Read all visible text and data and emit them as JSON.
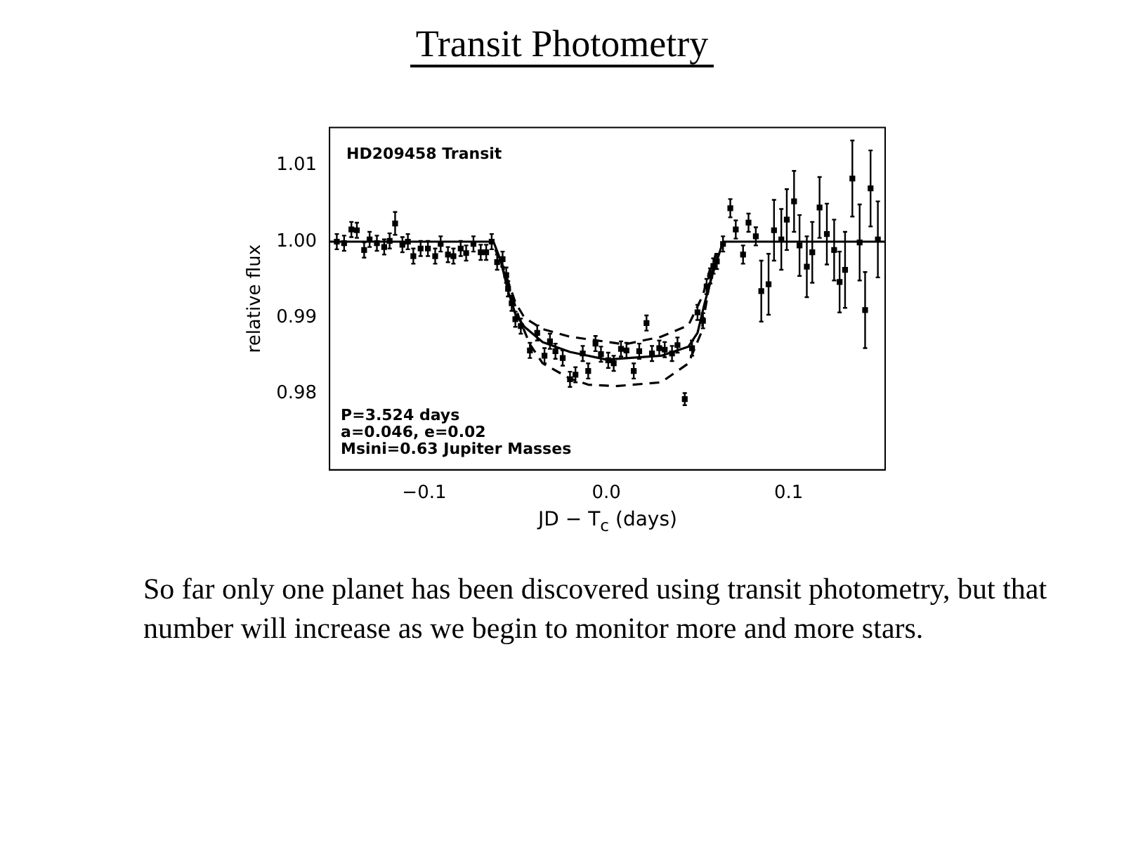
{
  "chart_data": {
    "type": "scatter",
    "title": "Transit Photometry",
    "xlabel": "JD − T$_{c}$ (days)",
    "ylabel": "relative flux",
    "xlim": [
      -0.152,
      0.153
    ],
    "ylim": [
      0.97,
      1.015
    ],
    "xticks": [
      {
        "value": -0.1,
        "label": "−0.1"
      },
      {
        "value": 0,
        "label": "0.0"
      },
      0.1
    ],
    "yticks": [
      0.98,
      0.99,
      {
        "value": 1,
        "label": "1.00"
      },
      1.01
    ],
    "legend": false,
    "annotations": [
      "HD209458 Transit",
      "P=3.524 days",
      "a=0.046, e=0.02",
      "Msini=0.63 Jupiter Masses",
      "So far only one planet has been discovered using transit photometry, but that number will increase as we begin to monitor more and more stars."
    ],
    "series": [
      {
        "type": "scatter",
        "color": "#000000",
        "marker": "square",
        "x": [
          -0.148,
          -0.144,
          -0.14,
          -0.137,
          -0.133,
          -0.13,
          -0.126,
          -0.122,
          -0.119,
          -0.116,
          -0.112,
          -0.109,
          -0.106,
          -0.102,
          -0.098,
          -0.094,
          -0.091,
          -0.087,
          -0.084,
          -0.08,
          -0.077,
          -0.073,
          -0.069,
          -0.066,
          -0.063,
          -0.06,
          -0.057,
          -0.055,
          -0.054,
          -0.052,
          -0.05,
          -0.047,
          -0.042,
          -0.038,
          -0.034,
          -0.031,
          -0.028,
          -0.024,
          -0.02,
          -0.017,
          -0.013,
          -0.01,
          -0.006,
          -0.003,
          0.001,
          0.004,
          0.008,
          0.011,
          0.015,
          0.018,
          0.022,
          0.025,
          0.029,
          0.032,
          0.036,
          0.039,
          0.043,
          0.047,
          0.05,
          0.053,
          0.055,
          0.057,
          0.0587,
          0.0606,
          0.064,
          0.068,
          0.071,
          0.075,
          0.078,
          0.082,
          0.085,
          0.089,
          0.092,
          0.096,
          0.099,
          0.103,
          0.106,
          0.11,
          0.113,
          0.117,
          0.121,
          0.125,
          0.128,
          0.131,
          0.135,
          0.139,
          0.142,
          0.145,
          0.149
        ],
        "values": [
          1.0,
          0.9998,
          1.0016,
          1.0015,
          0.9989,
          1.0003,
          0.9998,
          0.9993,
          1.0001,
          1.0024,
          0.9996,
          1.0,
          0.9981,
          0.9991,
          0.9991,
          0.9981,
          0.9997,
          0.9983,
          0.9981,
          0.9991,
          0.9985,
          0.9997,
          0.9986,
          0.9986,
          1.0,
          0.9973,
          0.9977,
          0.9956,
          0.9938,
          0.9919,
          0.9898,
          0.9889,
          0.9857,
          0.988,
          0.985,
          0.9869,
          0.9856,
          0.9847,
          0.9819,
          0.9825,
          0.9853,
          0.983,
          0.9866,
          0.9852,
          0.9844,
          0.984,
          0.9859,
          0.9857,
          0.983,
          0.9856,
          0.9893,
          0.9853,
          0.986,
          0.9858,
          0.9853,
          0.9864,
          0.9793,
          0.986,
          0.9907,
          0.9896,
          0.9941,
          0.9955,
          0.9968,
          0.9974,
          0.9997,
          1.0044,
          1.0016,
          0.9983,
          1.0025,
          1.0007,
          0.9935,
          0.9944,
          1.0015,
          1.0003,
          1.0029,
          1.0053,
          0.9995,
          0.9967,
          0.9986,
          1.0045,
          1.001,
          0.9989,
          0.9947,
          0.9963,
          1.0083,
          0.9999,
          0.991,
          1.007,
          1.0003
        ],
        "errors": [
          0.001,
          0.001,
          0.001,
          0.001,
          0.001,
          0.001,
          0.001,
          0.001,
          0.001,
          0.0015,
          0.001,
          0.001,
          0.001,
          0.001,
          0.001,
          0.001,
          0.001,
          0.001,
          0.001,
          0.001,
          0.001,
          0.001,
          0.001,
          0.001,
          0.001,
          0.001,
          0.001,
          0.001,
          0.001,
          0.001,
          0.001,
          0.001,
          0.001,
          0.001,
          0.001,
          0.001,
          0.001,
          0.001,
          0.001,
          0.001,
          0.001,
          0.001,
          0.001,
          0.001,
          0.001,
          0.001,
          0.001,
          0.001,
          0.001,
          0.001,
          0.001,
          0.001,
          0.001,
          0.001,
          0.001,
          0.001,
          0.0008,
          0.001,
          0.001,
          0.001,
          0.001,
          0.001,
          0.001,
          0.001,
          0.001,
          0.0012,
          0.0012,
          0.0012,
          0.0012,
          0.0012,
          0.004,
          0.004,
          0.004,
          0.004,
          0.004,
          0.004,
          0.004,
          0.004,
          0.004,
          0.004,
          0.004,
          0.004,
          0.004,
          0.005,
          0.005,
          0.005,
          0.005,
          0.005,
          0.005
        ]
      },
      {
        "type": "line",
        "color": "#000000",
        "marker": "none",
        "line_style": "solid",
        "x": [
          -0.152,
          -0.062,
          -0.058,
          -0.054,
          -0.05,
          -0.045,
          -0.035,
          -0.02,
          0.0,
          0.03,
          0.045,
          0.05,
          0.054,
          0.058,
          0.064,
          0.153
        ],
        "values": [
          1.0,
          1.0,
          0.9975,
          0.9935,
          0.9905,
          0.9888,
          0.9868,
          0.9855,
          0.9845,
          0.985,
          0.9862,
          0.988,
          0.992,
          0.9955,
          1.0,
          1.0
        ]
      },
      {
        "type": "line",
        "color": "#000000",
        "marker": "none",
        "line_style": "dashed",
        "x": [
          -0.058,
          -0.055,
          -0.05,
          -0.045,
          -0.035,
          -0.02,
          0.01,
          0.03,
          0.045,
          0.053,
          0.057
        ],
        "values": [
          0.9975,
          0.9955,
          0.992,
          0.99,
          0.9885,
          0.9875,
          0.9865,
          0.9875,
          0.989,
          0.993,
          0.9965
        ]
      },
      {
        "type": "line",
        "color": "#000000",
        "marker": "none",
        "line_style": "dashed",
        "x": [
          -0.061,
          -0.057,
          -0.052,
          -0.048,
          -0.042,
          -0.035,
          -0.02,
          -0.01,
          0.005,
          0.03,
          0.045,
          0.052,
          0.057,
          0.06
        ],
        "values": [
          0.999,
          0.9965,
          0.993,
          0.99,
          0.9865,
          0.984,
          0.982,
          0.9812,
          0.981,
          0.9815,
          0.984,
          0.988,
          0.995,
          0.9985
        ]
      }
    ]
  }
}
